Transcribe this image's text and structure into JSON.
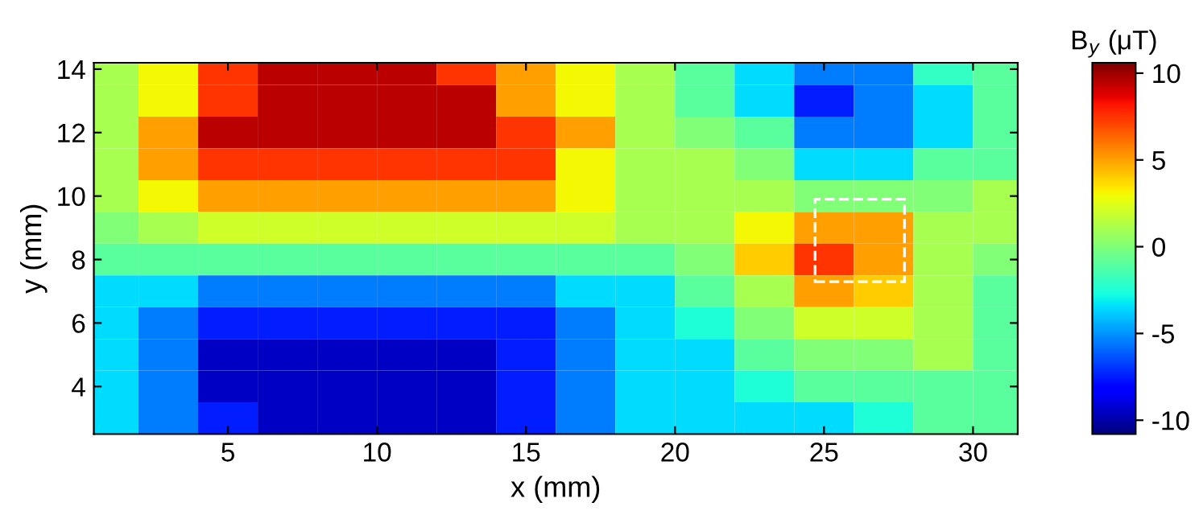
{
  "chart_data": {
    "type": "heatmap",
    "xlabel": "x (mm)",
    "ylabel": "y (mm)",
    "clabel": "B$_{y}$ (μT)",
    "x": [
      1,
      3,
      5,
      7,
      9,
      11,
      13,
      15,
      17,
      19,
      21,
      23,
      25,
      27,
      29,
      31
    ],
    "y": [
      14,
      13,
      12,
      11,
      10,
      9,
      8,
      7,
      6,
      5,
      4,
      3
    ],
    "cells": [
      [
        1,
        3,
        7.5,
        9.5,
        9.5,
        9.5,
        7.5,
        5,
        3,
        1,
        -1,
        -3.5,
        -5.5,
        -5.5,
        -2,
        -1
      ],
      [
        1,
        3,
        7.5,
        9.5,
        9.5,
        9.5,
        9.5,
        5,
        3,
        1,
        -1,
        -3.5,
        -7.5,
        -5.5,
        -3.5,
        -1
      ],
      [
        1,
        5,
        9.5,
        9.5,
        9.5,
        9.5,
        9.5,
        7.5,
        5,
        1,
        0,
        -1,
        -5.5,
        -5.5,
        -3.5,
        -1
      ],
      [
        1,
        5,
        7.5,
        7.5,
        7.5,
        7.5,
        7.5,
        7.5,
        3,
        1,
        1,
        0,
        -3.5,
        -3.5,
        -1,
        -1
      ],
      [
        1,
        3,
        5,
        5,
        5,
        5,
        5,
        5,
        3,
        1,
        1,
        1,
        0,
        0,
        0,
        1
      ],
      [
        0,
        1,
        2,
        2,
        2,
        2,
        2,
        2,
        2,
        1,
        1,
        3,
        5,
        5,
        1,
        1
      ],
      [
        -1,
        -1,
        -1,
        -1,
        -1,
        -1,
        -1,
        -1,
        -1,
        -1,
        0,
        4,
        7.5,
        5,
        1,
        0
      ],
      [
        -3.5,
        -3.5,
        -5.5,
        -5.5,
        -5.5,
        -5.5,
        -5.5,
        -5.5,
        -3.5,
        -3.5,
        -1,
        1,
        5,
        4,
        1,
        -1
      ],
      [
        -3.5,
        -5.5,
        -7.5,
        -7.5,
        -7.5,
        -7.5,
        -7.5,
        -7.5,
        -5.5,
        -3.5,
        -2.5,
        0,
        2,
        2,
        1,
        -1
      ],
      [
        -3.5,
        -5.5,
        -9.5,
        -9.5,
        -9.5,
        -9.5,
        -9.5,
        -7.5,
        -5.5,
        -3.5,
        -3.5,
        -1,
        0,
        0,
        1,
        -1
      ],
      [
        -3.5,
        -5.5,
        -9.5,
        -9.5,
        -9.5,
        -9.5,
        -9.5,
        -7.5,
        -5.5,
        -3.5,
        -3.5,
        -2.5,
        -1,
        -1,
        -1,
        -1
      ],
      [
        -3.5,
        -5.5,
        -7.5,
        -9.5,
        -9.5,
        -9.5,
        -9.5,
        -7.5,
        -5.5,
        -3.5,
        -3.5,
        -3.5,
        -3.5,
        -2.5,
        -1,
        -1
      ]
    ],
    "xlim": [
      0.5,
      31.5
    ],
    "ylim": [
      2.5,
      14.2
    ],
    "xticks": [
      5,
      10,
      15,
      20,
      25,
      30
    ],
    "yticks": [
      4,
      6,
      8,
      10,
      12,
      14
    ],
    "clim": [
      -10.8,
      10.6
    ],
    "cticks": [
      -10,
      -5,
      0,
      5,
      10
    ],
    "grid": false
  }
}
